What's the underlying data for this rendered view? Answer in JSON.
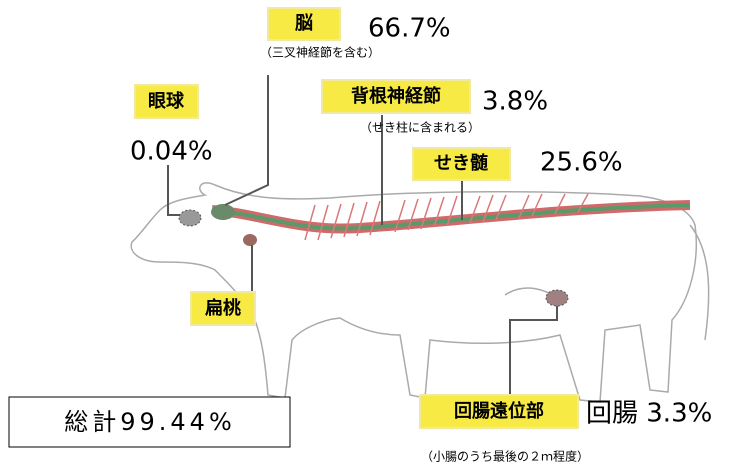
{
  "parts": [
    {
      "label": "脳",
      "value": "66.7%",
      "note": "（三叉神経節を含む）"
    },
    {
      "label": "眼球",
      "value": "0.04%"
    },
    {
      "label": "背根神経節",
      "value": "3.8%",
      "note": "（せき柱に含まれる）"
    },
    {
      "label": "せき髄",
      "value": "25.6%"
    },
    {
      "label": "扁桃"
    },
    {
      "label": "回腸遠位部",
      "value": "回腸 3.3%",
      "note": "（小腸のうち最後の２ｍ程度）"
    }
  ],
  "total": "総計99.44%"
}
